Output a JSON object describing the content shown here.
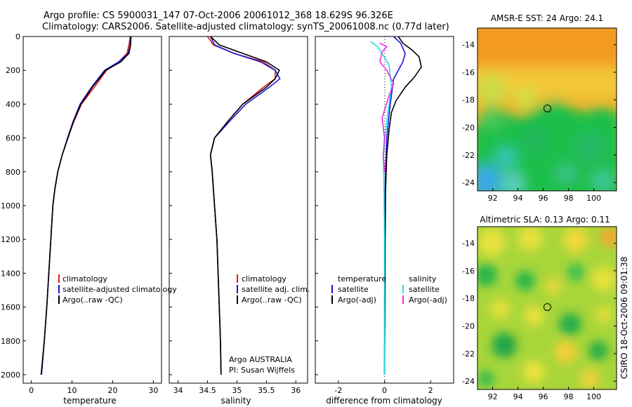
{
  "header": {
    "title_line1": "Argo profile: CS 5900031_147 07-Oct-2006 20061012_368 18.629S 96.326E",
    "title_line2": "Climatology: CARS2006. Satellite-adjusted climatology: synTS_20061008.nc (0.77d later)"
  },
  "credit": "CSIRO 18-Oct-2006 09:01:38",
  "colors": {
    "climatology": "#e31a1c",
    "satellite": "#1515d8",
    "argo": "#000000",
    "salinity_satellite": "#22e0e8",
    "salinity_argo": "#ee2ee0"
  },
  "chart_data": [
    {
      "type": "line",
      "title": "",
      "xlabel": "temperature",
      "ylabel": "",
      "xlim": [
        -2,
        32
      ],
      "ylim": [
        2050,
        0
      ],
      "xticks": [
        "0",
        "10",
        "20",
        "30"
      ],
      "yticks": [
        "0",
        "200",
        "400",
        "600",
        "800",
        "1000",
        "1200",
        "1400",
        "1600",
        "1800",
        "2000"
      ],
      "legend": [
        "climatology",
        "satellite-adjusted climatology",
        "Argo(..raw -QC)"
      ],
      "legend_position": "lower-right",
      "series": [
        {
          "name": "climatology",
          "color": "#e31a1c",
          "points": [
            [
              24.3,
              0
            ],
            [
              24,
              50
            ],
            [
              23.5,
              100
            ],
            [
              21.5,
              150
            ],
            [
              18.5,
              200
            ],
            [
              15.5,
              300
            ],
            [
              12.3,
              400
            ],
            [
              10.5,
              500
            ],
            [
              9,
              600
            ],
            [
              7.6,
              700
            ],
            [
              6.5,
              800
            ],
            [
              5.8,
              900
            ],
            [
              5.3,
              1000
            ],
            [
              4.8,
              1200
            ],
            [
              4.3,
              1400
            ],
            [
              3.8,
              1600
            ],
            [
              3.2,
              1800
            ],
            [
              2.5,
              2000
            ]
          ]
        },
        {
          "name": "satellite-adjusted climatology",
          "color": "#1515d8",
          "points": [
            [
              24.5,
              0
            ],
            [
              24.3,
              50
            ],
            [
              23.8,
              100
            ],
            [
              21.5,
              150
            ],
            [
              18,
              200
            ],
            [
              14.8,
              300
            ],
            [
              12,
              400
            ],
            [
              10.3,
              500
            ],
            [
              8.9,
              600
            ],
            [
              7.6,
              700
            ],
            [
              6.5,
              800
            ],
            [
              5.8,
              900
            ],
            [
              5.3,
              1000
            ],
            [
              4.8,
              1200
            ],
            [
              4.3,
              1400
            ],
            [
              3.8,
              1600
            ],
            [
              3.2,
              1800
            ],
            [
              2.5,
              2000
            ]
          ]
        },
        {
          "name": "Argo(..raw -QC)",
          "color": "#000000",
          "points": [
            [
              24.5,
              0
            ],
            [
              24.4,
              50
            ],
            [
              24,
              100
            ],
            [
              22,
              150
            ],
            [
              18.3,
              200
            ],
            [
              15,
              300
            ],
            [
              12.2,
              400
            ],
            [
              10.4,
              500
            ],
            [
              9,
              600
            ],
            [
              7.6,
              700
            ],
            [
              6.5,
              800
            ],
            [
              5.8,
              900
            ],
            [
              5.3,
              1000
            ],
            [
              4.8,
              1200
            ],
            [
              4.3,
              1400
            ],
            [
              3.8,
              1600
            ],
            [
              3.2,
              1800
            ],
            [
              2.4,
              2000
            ]
          ]
        }
      ]
    },
    {
      "type": "line",
      "title": "",
      "xlabel": "salinity",
      "ylabel": "",
      "xlim": [
        33.85,
        36.2
      ],
      "ylim": [
        2050,
        0
      ],
      "xticks": [
        "34",
        "34.5",
        "35",
        "35.5",
        "36"
      ],
      "legend": [
        "climatology",
        "satellite adj. clim.",
        "Argo(..raw -QC)"
      ],
      "legend_position": "lower-right",
      "annotations": [
        "Argo AUSTRALIA",
        "PI: Susan Wijffels"
      ],
      "series": [
        {
          "name": "climatology",
          "color": "#e31a1c",
          "points": [
            [
              34.5,
              0
            ],
            [
              34.6,
              50
            ],
            [
              34.95,
              100
            ],
            [
              35.45,
              150
            ],
            [
              35.65,
              200
            ],
            [
              35.65,
              250
            ],
            [
              35.45,
              300
            ],
            [
              35.1,
              400
            ],
            [
              34.85,
              500
            ],
            [
              34.62,
              600
            ],
            [
              34.55,
              700
            ],
            [
              34.58,
              800
            ],
            [
              34.62,
              1000
            ],
            [
              34.66,
              1200
            ],
            [
              34.68,
              1400
            ],
            [
              34.7,
              1600
            ],
            [
              34.72,
              1800
            ],
            [
              34.73,
              2000
            ]
          ]
        },
        {
          "name": "satellite adj. clim.",
          "color": "#1515d8",
          "points": [
            [
              34.55,
              0
            ],
            [
              34.62,
              50
            ],
            [
              34.95,
              100
            ],
            [
              35.4,
              150
            ],
            [
              35.65,
              200
            ],
            [
              35.73,
              250
            ],
            [
              35.55,
              300
            ],
            [
              35.15,
              400
            ],
            [
              34.88,
              500
            ],
            [
              34.62,
              600
            ],
            [
              34.55,
              700
            ],
            [
              34.58,
              800
            ],
            [
              34.62,
              1000
            ],
            [
              34.66,
              1200
            ],
            [
              34.68,
              1400
            ],
            [
              34.7,
              1600
            ],
            [
              34.72,
              1800
            ],
            [
              34.73,
              2000
            ]
          ]
        },
        {
          "name": "Argo(..raw -QC)",
          "color": "#000000",
          "points": [
            [
              34.55,
              0
            ],
            [
              34.7,
              50
            ],
            [
              35.1,
              100
            ],
            [
              35.5,
              150
            ],
            [
              35.72,
              200
            ],
            [
              35.65,
              250
            ],
            [
              35.5,
              300
            ],
            [
              35.1,
              400
            ],
            [
              34.85,
              500
            ],
            [
              34.62,
              600
            ],
            [
              34.55,
              700
            ],
            [
              34.58,
              800
            ],
            [
              34.62,
              1000
            ],
            [
              34.66,
              1200
            ],
            [
              34.68,
              1400
            ],
            [
              34.7,
              1600
            ],
            [
              34.72,
              1800
            ],
            [
              34.73,
              2000
            ]
          ]
        }
      ]
    },
    {
      "type": "line",
      "title": "",
      "xlabel": "difference from climatology",
      "ylabel": "",
      "xlim": [
        -3,
        3
      ],
      "ylim": [
        2050,
        0
      ],
      "xticks": [
        "-2",
        "0",
        "2"
      ],
      "legend": [
        "temperature",
        "satellite",
        "Argo(-adj)",
        "salinity",
        "satellite",
        "Argo(-adj)"
      ],
      "legend_position": "lower-right",
      "series": [
        {
          "name": "temperature satellite",
          "color": "#1515d8",
          "points": [
            [
              0.4,
              0
            ],
            [
              0.7,
              40
            ],
            [
              0.9,
              100
            ],
            [
              0.8,
              150
            ],
            [
              0.4,
              250
            ],
            [
              0.25,
              400
            ],
            [
              0.1,
              600
            ],
            [
              0.05,
              800
            ],
            [
              0.02,
              1000
            ],
            [
              0.01,
              1400
            ],
            [
              0,
              2000
            ]
          ]
        },
        {
          "name": "temperature Argo(-adj)",
          "color": "#000000",
          "points": [
            [
              0.6,
              0
            ],
            [
              0.8,
              40
            ],
            [
              1.2,
              80
            ],
            [
              1.5,
              120
            ],
            [
              1.6,
              180
            ],
            [
              1.3,
              240
            ],
            [
              0.9,
              300
            ],
            [
              0.5,
              380
            ],
            [
              0.3,
              450
            ],
            [
              0.2,
              550
            ],
            [
              0.1,
              700
            ],
            [
              0.05,
              900
            ],
            [
              0.03,
              1200
            ],
            [
              0.02,
              1600
            ],
            [
              0,
              2000
            ]
          ]
        },
        {
          "name": "salinity satellite",
          "color": "#22e0e8",
          "points": [
            [
              -0.6,
              30
            ],
            [
              -0.3,
              60
            ],
            [
              -0.1,
              100
            ],
            [
              0.2,
              170
            ],
            [
              0.3,
              300
            ],
            [
              0.1,
              500
            ],
            [
              -0.05,
              700
            ],
            [
              -0.02,
              900
            ],
            [
              0,
              1200
            ],
            [
              0,
              2000
            ]
          ]
        },
        {
          "name": "salinity Argo(-adj)",
          "color": "#ee2ee0",
          "points": [
            [
              -0.2,
              40
            ],
            [
              0.1,
              60
            ],
            [
              -0.1,
              90
            ],
            [
              -0.2,
              150
            ],
            [
              0.1,
              200
            ],
            [
              0.4,
              280
            ],
            [
              0.2,
              350
            ],
            [
              -0.1,
              480
            ],
            [
              0,
              600
            ],
            [
              -0.05,
              700
            ],
            [
              0,
              800
            ]
          ]
        }
      ]
    },
    {
      "type": "heatmap",
      "title": "AMSR-E SST: 24 Argo: 24.1",
      "xlabel": "",
      "ylabel": "",
      "xlim": [
        90.8,
        101.8
      ],
      "ylim": [
        -24.6,
        -12.8
      ],
      "xticks": [
        "92",
        "94",
        "96",
        "98",
        "100"
      ],
      "yticks": [
        "-14",
        "-16",
        "-18",
        "-20",
        "-22",
        "-24"
      ],
      "marker": [
        96.326,
        -18.629
      ]
    },
    {
      "type": "heatmap",
      "title": "Altimetric SLA: 0.13 Argo: 0.11",
      "xlabel": "",
      "ylabel": "",
      "xlim": [
        90.8,
        101.8
      ],
      "ylim": [
        -24.6,
        -12.8
      ],
      "xticks": [
        "92",
        "94",
        "96",
        "98",
        "100"
      ],
      "yticks": [
        "-14",
        "-16",
        "-18",
        "-20",
        "-22",
        "-24"
      ],
      "marker": [
        96.326,
        -18.629
      ]
    }
  ]
}
